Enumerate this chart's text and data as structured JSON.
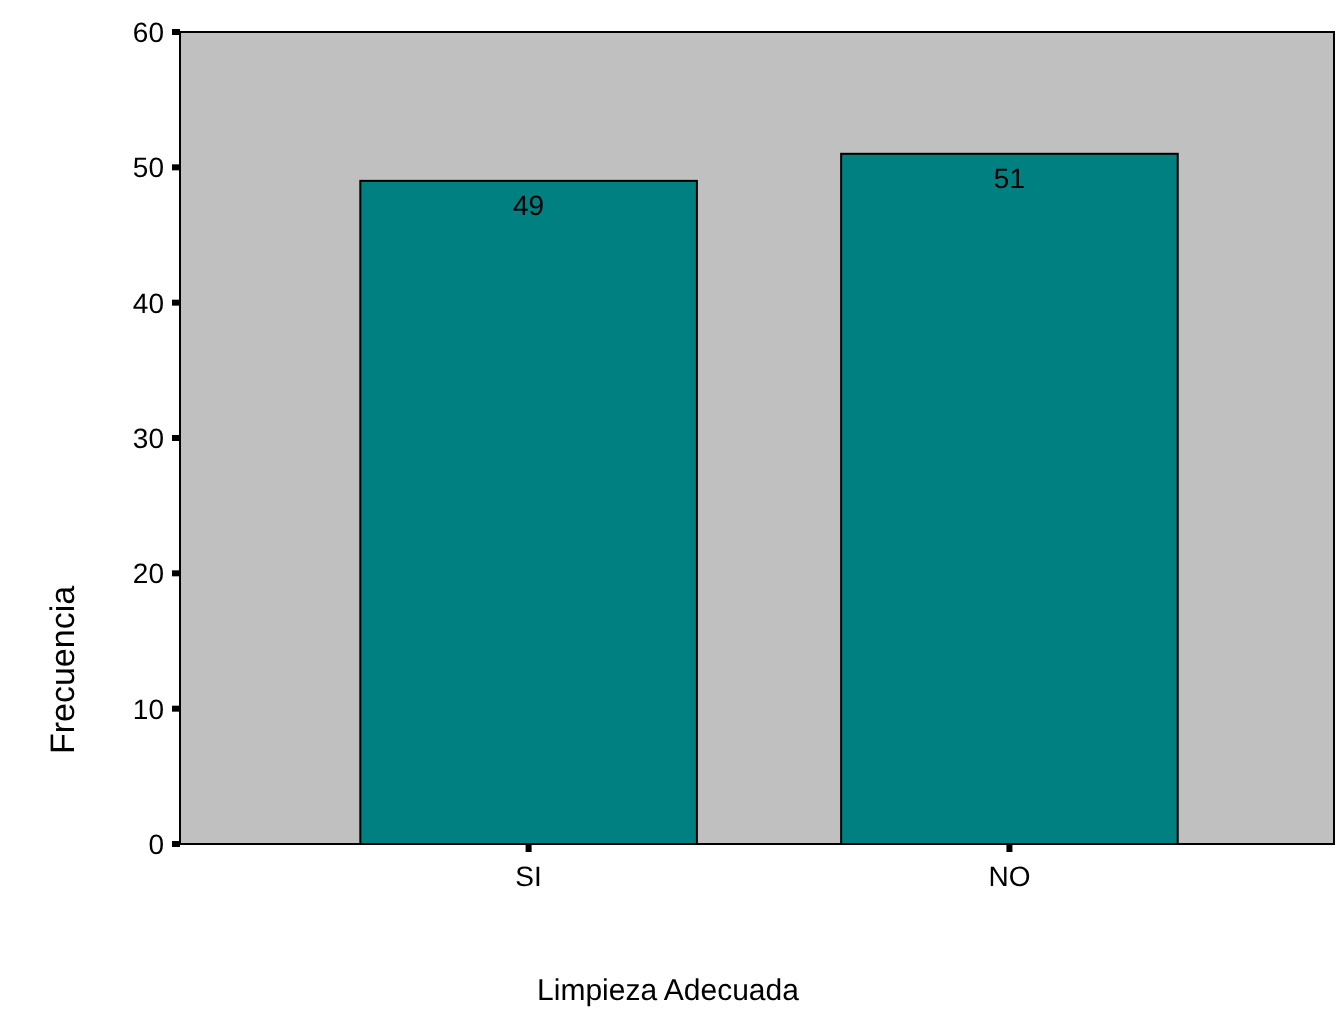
{
  "chart_data": {
    "type": "bar",
    "xlabel": "Limpieza Adecuada",
    "ylabel": "Frecuencia",
    "categories": [
      "SI",
      "NO"
    ],
    "values": [
      49,
      51
    ],
    "color": "#008080",
    "ylim": [
      0,
      60
    ],
    "yticks": [
      0,
      10,
      20,
      30,
      40,
      50,
      60
    ],
    "data_labels": true,
    "grid": false
  }
}
